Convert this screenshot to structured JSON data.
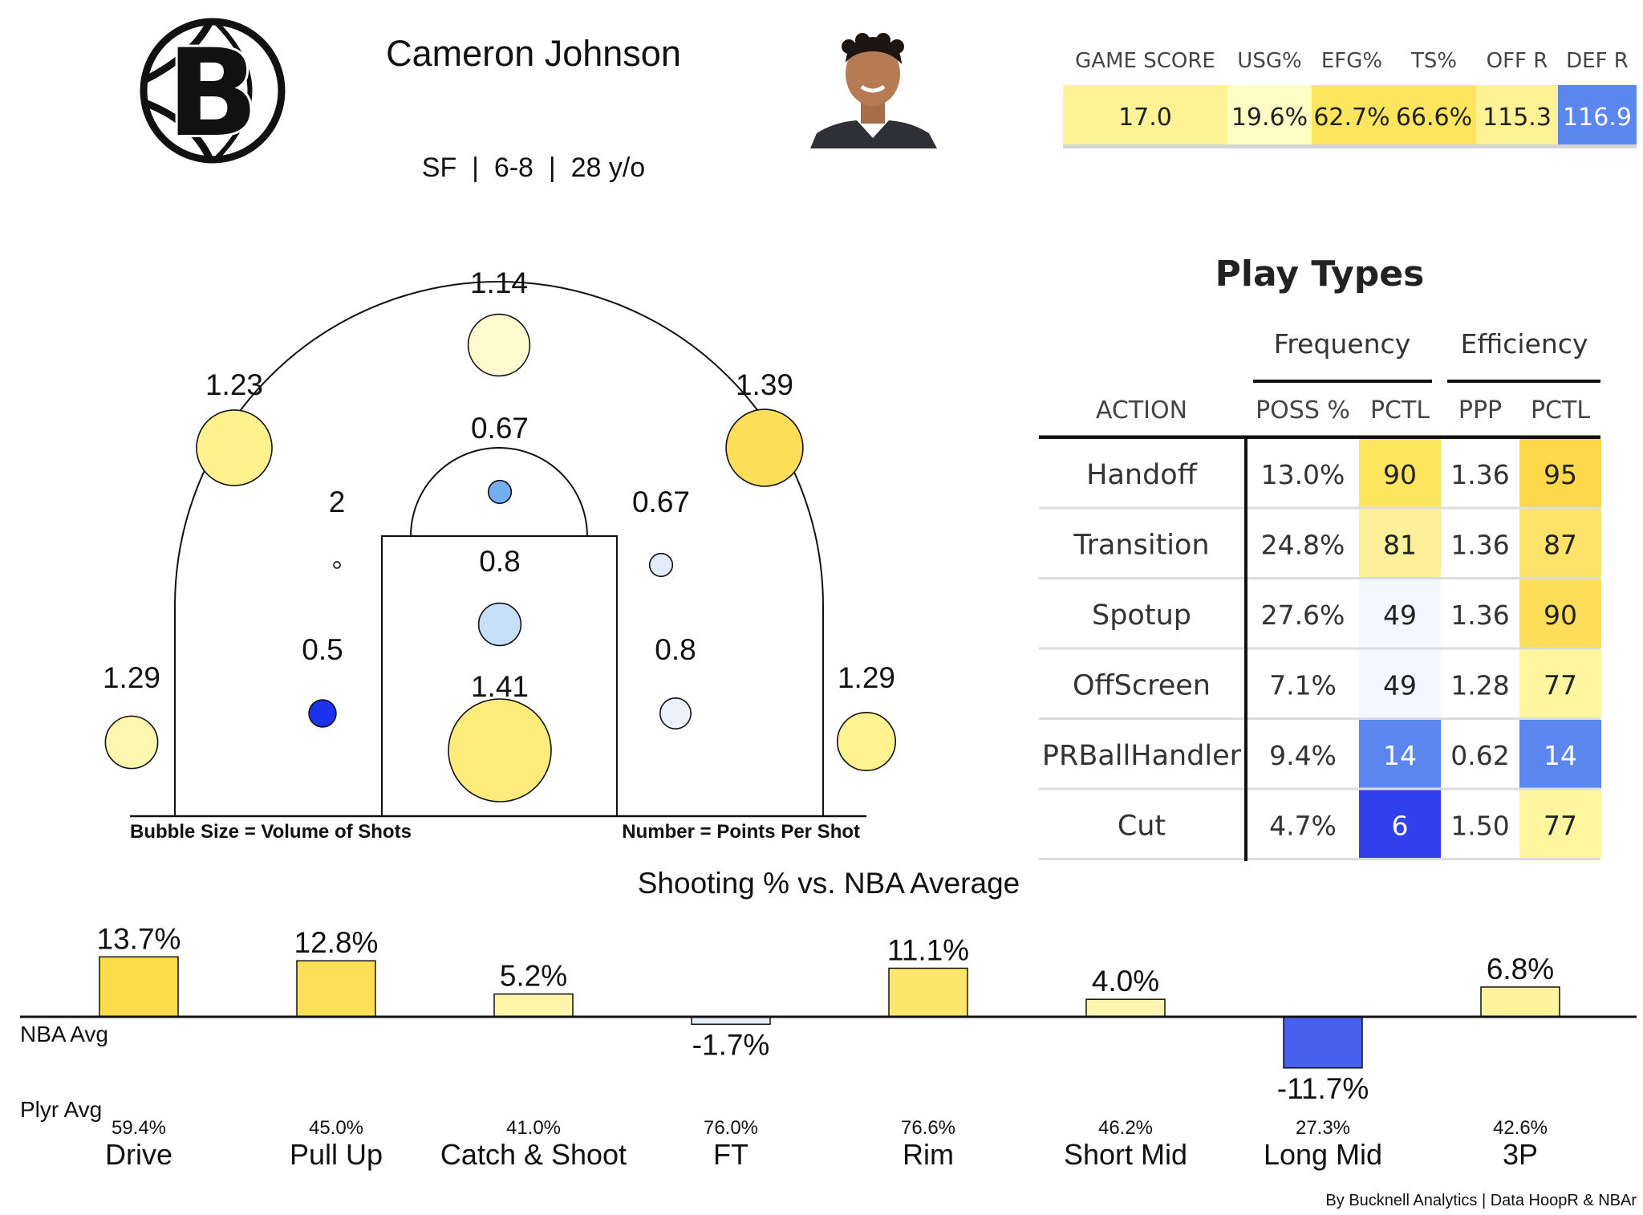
{
  "header": {
    "player_name": "Cameron Johnson",
    "bio": "SF  |  6-8  |  28 y/o",
    "logo_icon": "nets-b-basketball-logo-icon",
    "headshot_icon": "player-headshot-icon"
  },
  "stats": {
    "columns": [
      "GAME SCORE",
      "USG%",
      "EFG%",
      "TS%",
      "OFF R",
      "DEF R"
    ],
    "values": [
      "17.0",
      "19.6%",
      "62.7%",
      "66.6%",
      "115.3",
      "116.9"
    ],
    "colors": [
      "#fdf294",
      "#fefcc4",
      "#fde560",
      "#fde560",
      "#fdf294",
      "#5a86ee"
    ]
  },
  "play_types": {
    "title": "Play Types",
    "group_frequency": "Frequency",
    "group_efficiency": "Efficiency",
    "headers": [
      "ACTION",
      "POSS %",
      "PCTL",
      "PPP",
      "PCTL"
    ],
    "rows": [
      {
        "action": "Handoff",
        "poss": "13.0%",
        "freq_pctl": "90",
        "ppp": "1.36",
        "eff_pctl": "95"
      },
      {
        "action": "Transition",
        "poss": "24.8%",
        "freq_pctl": "81",
        "ppp": "1.36",
        "eff_pctl": "87"
      },
      {
        "action": "Spotup",
        "poss": "27.6%",
        "freq_pctl": "49",
        "ppp": "1.36",
        "eff_pctl": "90"
      },
      {
        "action": "OffScreen",
        "poss": "7.1%",
        "freq_pctl": "49",
        "ppp": "1.28",
        "eff_pctl": "77"
      },
      {
        "action": "PRBallHandler",
        "poss": "9.4%",
        "freq_pctl": "14",
        "ppp": "0.62",
        "eff_pctl": "14"
      },
      {
        "action": "Cut",
        "poss": "4.7%",
        "freq_pctl": "6",
        "ppp": "1.50",
        "eff_pctl": "77"
      }
    ],
    "freq_colors": [
      "#fde560",
      "#fef09a",
      "#f4f7fe",
      "#f4f7fe",
      "#5a86ee",
      "#3340ee"
    ],
    "eff_colors": [
      "#fdd84a",
      "#fde26a",
      "#fddd5a",
      "#fef59e",
      "#5a86ee",
      "#fef59e"
    ]
  },
  "shot_chart": {
    "note_left": "Bubble Size = Volume of Shots",
    "note_right": "Number = Points Per Shot",
    "zones": [
      {
        "zone": "left-corner-3",
        "label": "1.29",
        "size": 0.26,
        "color": "#fef7b0"
      },
      {
        "zone": "left-wing-3",
        "label": "1.23",
        "size": 0.54,
        "color": "#fef18e"
      },
      {
        "zone": "top-of-key-3",
        "label": "1.14",
        "size": 0.36,
        "color": "#fefad0"
      },
      {
        "zone": "right-wing-3",
        "label": "1.39",
        "size": 0.56,
        "color": "#fdde58"
      },
      {
        "zone": "right-corner-3",
        "label": "1.29",
        "size": 0.32,
        "color": "#fef390"
      },
      {
        "zone": "left-elbow-mid",
        "label": "2",
        "size": 0.004,
        "color": "#ffffff"
      },
      {
        "zone": "left-baseline-mid",
        "label": "0.5",
        "size": 0.07,
        "color": "#1a33ee"
      },
      {
        "zone": "free-throw-mid",
        "label": "0.67",
        "size": 0.05,
        "color": "#72aef0"
      },
      {
        "zone": "right-elbow-mid",
        "label": "0.67",
        "size": 0.05,
        "color": "#e2ecfb"
      },
      {
        "zone": "paint",
        "label": "0.8",
        "size": 0.17,
        "color": "#c7dff8"
      },
      {
        "zone": "right-baseline-mid",
        "label": "0.8",
        "size": 0.09,
        "color": "#edf3fc"
      },
      {
        "zone": "restricted-area",
        "label": "1.41",
        "size": 1.0,
        "color": "#fdeb7a"
      }
    ]
  },
  "chart_data": {
    "type": "bar",
    "title": "Shooting % vs. NBA Average",
    "categories": [
      "Drive",
      "Pull Up",
      "Catch & Shoot",
      "FT",
      "Rim",
      "Short Mid",
      "Long Mid",
      "3P"
    ],
    "values": [
      13.7,
      12.8,
      5.2,
      -1.7,
      11.1,
      4.0,
      -11.7,
      6.8
    ],
    "value_labels": [
      "13.7%",
      "12.8%",
      "5.2%",
      "-1.7%",
      "11.1%",
      "4.0%",
      "-11.7%",
      "6.8%"
    ],
    "player_avg": [
      "59.4%",
      "45.0%",
      "41.0%",
      "76.0%",
      "76.6%",
      "46.2%",
      "27.3%",
      "42.6%"
    ],
    "colors": [
      "#fddc4c",
      "#fde058",
      "#fef6a8",
      "#e6eefb",
      "#fde66c",
      "#fef6b0",
      "#4660f0",
      "#fef39a"
    ],
    "baseline_label": "NBA Avg",
    "player_label": "Plyr Avg",
    "grid": false
  },
  "footer": {
    "credit": "By Bucknell Analytics | Data HoopR & NBAr"
  }
}
